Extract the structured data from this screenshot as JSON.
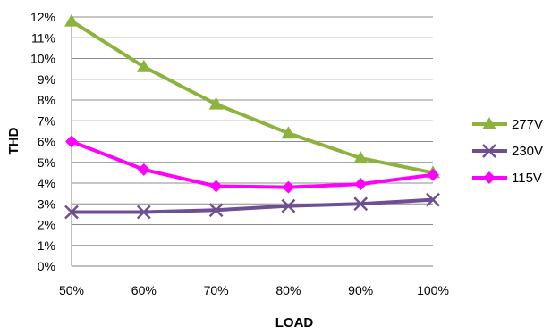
{
  "chart_data": {
    "type": "line",
    "title": "",
    "xlabel": "LOAD",
    "ylabel": "THD",
    "categories": [
      "50%",
      "60%",
      "70%",
      "80%",
      "90%",
      "100%"
    ],
    "y_ticks": [
      "0%",
      "1%",
      "2%",
      "3%",
      "4%",
      "5%",
      "6%",
      "7%",
      "8%",
      "9%",
      "10%",
      "11%",
      "12%"
    ],
    "ylim": [
      0,
      12
    ],
    "grid": "horizontal",
    "legend_position": "right",
    "series": [
      {
        "name": "277V",
        "color": "#8CB43C",
        "marker": "triangle",
        "values": [
          11.8,
          9.6,
          7.8,
          6.4,
          5.2,
          4.5
        ]
      },
      {
        "name": "230V",
        "color": "#6F4F94",
        "marker": "x",
        "values": [
          2.6,
          2.6,
          2.7,
          2.9,
          3.0,
          3.2
        ]
      },
      {
        "name": "115V",
        "color": "#FF00FF",
        "marker": "diamond",
        "values": [
          6.0,
          4.65,
          3.85,
          3.8,
          3.95,
          4.4
        ]
      }
    ]
  }
}
